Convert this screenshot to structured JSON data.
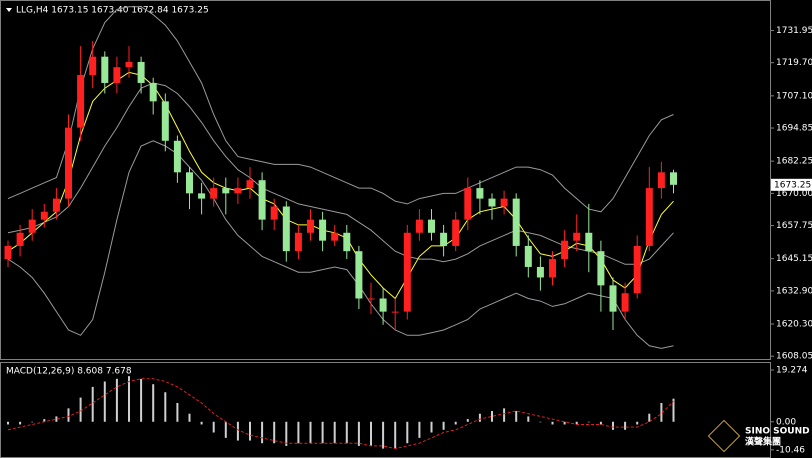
{
  "chart_data": [
    {
      "type": "candlestick",
      "title": "LLG,H4  1673.15 1673.40 1672.84 1673.25",
      "open": [
        1645,
        1650,
        1655,
        1660,
        1663,
        1668,
        1695,
        1715,
        1722,
        1712,
        1718,
        1720,
        1712,
        1705,
        1690,
        1678,
        1670,
        1668,
        1672,
        1670,
        1672,
        1675,
        1660,
        1665,
        1648,
        1655,
        1660,
        1652,
        1655,
        1648,
        1630,
        1630,
        1625,
        1625,
        1655,
        1660,
        1655,
        1650,
        1660,
        1672,
        1668,
        1665,
        1668,
        1650,
        1642,
        1638,
        1645,
        1652,
        1655,
        1648,
        1635,
        1625,
        1632,
        1650,
        1672,
        1678
      ],
      "high": [
        1652,
        1658,
        1664,
        1666,
        1672,
        1700,
        1726,
        1728,
        1724,
        1722,
        1726,
        1722,
        1714,
        1708,
        1692,
        1680,
        1674,
        1676,
        1676,
        1676,
        1680,
        1678,
        1668,
        1667,
        1658,
        1664,
        1663,
        1658,
        1658,
        1650,
        1636,
        1634,
        1630,
        1658,
        1664,
        1664,
        1658,
        1663,
        1676,
        1675,
        1670,
        1671,
        1670,
        1654,
        1646,
        1648,
        1656,
        1662,
        1666,
        1652,
        1638,
        1636,
        1654,
        1680,
        1682,
        1679
      ],
      "low": [
        1642,
        1646,
        1652,
        1657,
        1660,
        1665,
        1690,
        1710,
        1708,
        1708,
        1714,
        1708,
        1700,
        1686,
        1674,
        1664,
        1662,
        1665,
        1662,
        1666,
        1668,
        1656,
        1656,
        1644,
        1645,
        1652,
        1648,
        1650,
        1645,
        1626,
        1624,
        1620,
        1618,
        1622,
        1652,
        1652,
        1646,
        1648,
        1656,
        1662,
        1660,
        1662,
        1646,
        1638,
        1633,
        1635,
        1642,
        1648,
        1640,
        1625,
        1618,
        1622,
        1630,
        1648,
        1668,
        1670
      ],
      "close": [
        1650,
        1655,
        1660,
        1663,
        1668,
        1695,
        1715,
        1722,
        1712,
        1718,
        1720,
        1712,
        1705,
        1690,
        1678,
        1670,
        1668,
        1672,
        1670,
        1672,
        1675,
        1660,
        1665,
        1648,
        1655,
        1660,
        1652,
        1655,
        1648,
        1630,
        1630,
        1625,
        1625,
        1655,
        1660,
        1655,
        1650,
        1660,
        1672,
        1668,
        1665,
        1668,
        1650,
        1642,
        1638,
        1645,
        1652,
        1655,
        1648,
        1635,
        1625,
        1632,
        1650,
        1672,
        1678,
        1673.25
      ],
      "upper_band": [
        1668,
        1670,
        1672,
        1674,
        1676,
        1690,
        1710,
        1725,
        1735,
        1740,
        1741,
        1741,
        1738,
        1734,
        1728,
        1720,
        1712,
        1700,
        1690,
        1684,
        1683,
        1682,
        1681,
        1681,
        1681,
        1680,
        1678,
        1676,
        1674,
        1672,
        1672,
        1670,
        1667,
        1666,
        1668,
        1669,
        1670,
        1670,
        1672,
        1674,
        1676,
        1678,
        1680,
        1680,
        1679,
        1677,
        1672,
        1668,
        1664,
        1663,
        1668,
        1676,
        1684,
        1692,
        1698,
        1700
      ],
      "middle_band": [
        1655,
        1656,
        1657,
        1659,
        1661,
        1665,
        1672,
        1680,
        1688,
        1695,
        1703,
        1710,
        1712,
        1711,
        1708,
        1703,
        1697,
        1690,
        1684,
        1679,
        1676,
        1672,
        1670,
        1668,
        1666,
        1665,
        1664,
        1663,
        1662,
        1659,
        1656,
        1652,
        1648,
        1646,
        1645,
        1645,
        1644,
        1645,
        1647,
        1650,
        1652,
        1654,
        1656,
        1655,
        1654,
        1652,
        1650,
        1649,
        1648,
        1647,
        1645,
        1643,
        1643,
        1645,
        1650,
        1655
      ],
      "lower_band": [
        1645,
        1642,
        1638,
        1632,
        1625,
        1618,
        1616,
        1622,
        1640,
        1660,
        1678,
        1688,
        1690,
        1688,
        1685,
        1680,
        1675,
        1668,
        1660,
        1654,
        1650,
        1646,
        1644,
        1642,
        1640,
        1640,
        1641,
        1642,
        1641,
        1635,
        1628,
        1622,
        1618,
        1616,
        1616,
        1617,
        1618,
        1620,
        1622,
        1626,
        1628,
        1630,
        1632,
        1630,
        1629,
        1627,
        1628,
        1630,
        1632,
        1631,
        1630,
        1622,
        1616,
        1612,
        1611,
        1612
      ],
      "ma": [
        1648,
        1651,
        1655,
        1659,
        1663,
        1675,
        1692,
        1705,
        1710,
        1713,
        1716,
        1715,
        1711,
        1704,
        1695,
        1686,
        1678,
        1674,
        1672,
        1671,
        1672,
        1668,
        1666,
        1660,
        1658,
        1658,
        1656,
        1655,
        1653,
        1645,
        1639,
        1634,
        1630,
        1638,
        1646,
        1650,
        1650,
        1653,
        1660,
        1663,
        1664,
        1665,
        1660,
        1653,
        1647,
        1646,
        1648,
        1651,
        1650,
        1645,
        1637,
        1634,
        1639,
        1652,
        1662,
        1667
      ],
      "last_price": 1673.25,
      "colors": {
        "up": "#ff2020",
        "down": "#98e898",
        "band": "#9a9a9a",
        "ma": "#ffff33"
      },
      "ylim": [
        1606.6,
        1742.8
      ],
      "yticks": [
        1731.95,
        {
          "value": 1719.7,
          "label": "1719.70"
        },
        {
          "value": 1707.1,
          "label": "1707.10"
        },
        1694.85,
        1682.25,
        {
          "value": 1670,
          "label": "1670.00"
        },
        1657.75,
        1645.15,
        {
          "value": 1632.9,
          "label": "1632.90"
        },
        {
          "value": 1620.3,
          "label": "1620.30"
        },
        1608.05
      ]
    },
    {
      "type": "macd",
      "title": "MACD(12,26,9) 8.608 7.678",
      "values": [
        -1,
        -1,
        0,
        1,
        2,
        5,
        9,
        13,
        15,
        16,
        17,
        16,
        14,
        11,
        7,
        3,
        -1,
        -4,
        -6,
        -7,
        -7,
        -8,
        -8,
        -9,
        -8,
        -8,
        -8,
        -8,
        -8,
        -9,
        -9,
        -10,
        -10,
        -8,
        -6,
        -4,
        -3,
        -1,
        1,
        3,
        4,
        5,
        4,
        2,
        0,
        -1,
        -1,
        -1,
        0,
        -1,
        -3,
        -3,
        -1,
        3,
        7,
        8.608
      ],
      "signal": [
        -3,
        -2,
        -1,
        0,
        1,
        2,
        4,
        7,
        10,
        13,
        15,
        16,
        16,
        15,
        13,
        10,
        7,
        3,
        0,
        -3,
        -5,
        -6,
        -7,
        -8,
        -8,
        -8,
        -8,
        -8,
        -8,
        -8,
        -9,
        -9,
        -10,
        -9,
        -8,
        -6,
        -4,
        -3,
        -1,
        1,
        2,
        3,
        4,
        3,
        2,
        1,
        0,
        -1,
        -1,
        -1,
        -2,
        -2,
        -2,
        0,
        3,
        7.678
      ],
      "colors": {
        "histogram": "#d0d0d0",
        "signal": "#e02020"
      },
      "ylim": [
        -13.5,
        21.9
      ],
      "yticks": [
        19.274,
        {
          "value": 0,
          "label": "0.00"
        },
        -10.46
      ]
    }
  ],
  "logo": {
    "name": "SINO SOUND",
    "name_cn": "漢聲集團"
  }
}
